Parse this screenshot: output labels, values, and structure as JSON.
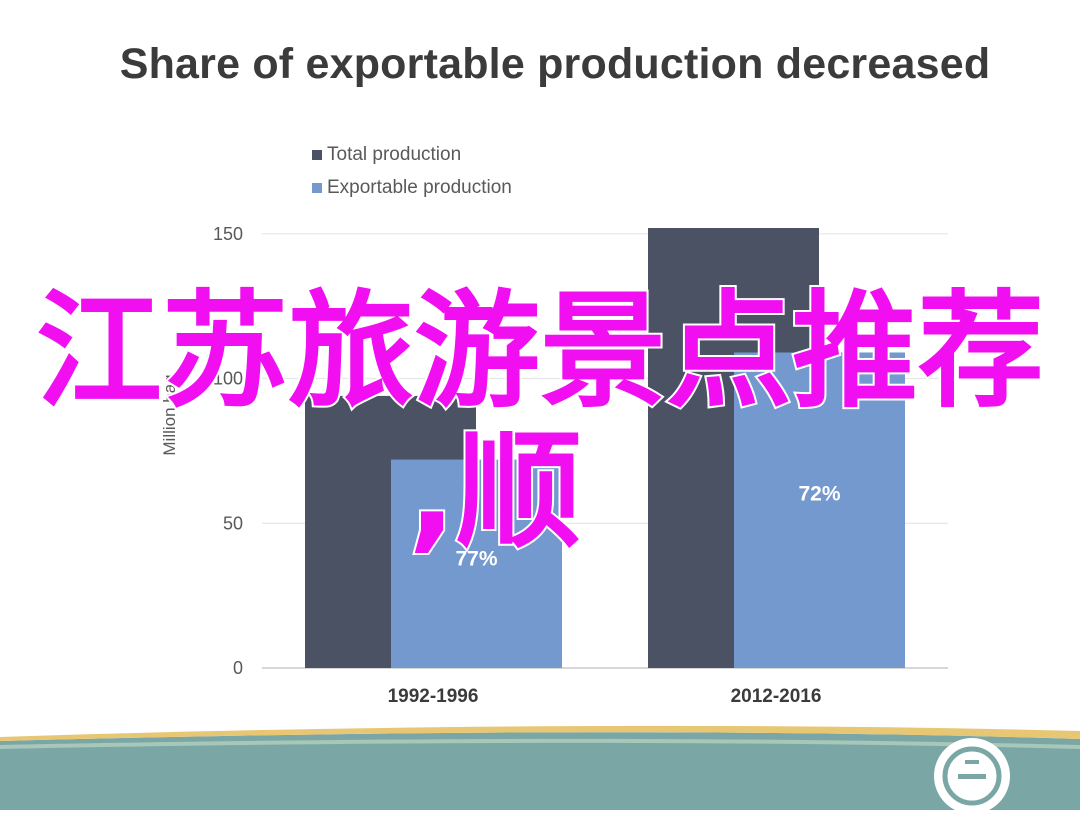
{
  "slide": {
    "title": "Share of exportable production decreased",
    "overlay_line1": "江苏旅游景点推荐",
    "overlay_line2": ",顺"
  },
  "chart_data": {
    "type": "bar",
    "categories": [
      "1992-1996",
      "2012-2016"
    ],
    "series": [
      {
        "name": "Total production",
        "color": "#4a5264",
        "values": [
          94,
          152
        ]
      },
      {
        "name": "Exportable production",
        "color": "#7399cf",
        "values": [
          72,
          109
        ]
      }
    ],
    "data_labels": [
      "77%",
      "72%"
    ],
    "ylabel": "Million bag",
    "yticks": [
      0,
      50,
      100,
      150
    ],
    "ylim": [
      0,
      152
    ],
    "grid": true,
    "legend_position": "top-left"
  },
  "colors": {
    "title": "#3b3b3b",
    "overlay": "#f10ff1",
    "footer_band": "#7ba6a6",
    "footer_stripe": "#e8c774"
  },
  "icons": {
    "footer_logo": "ico-logo-icon"
  }
}
